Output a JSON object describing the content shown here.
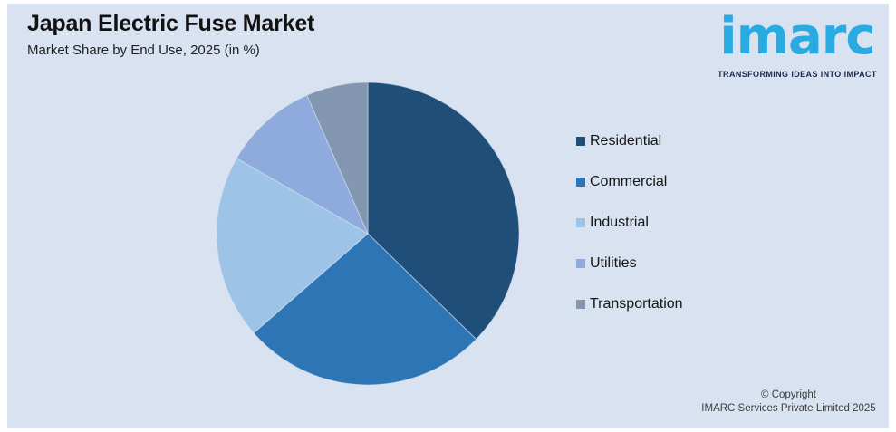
{
  "page": {
    "background": "#ffffff",
    "card_background": "#d9e2f0"
  },
  "header": {
    "title": "Japan Electric Fuse Market",
    "subtitle": "Market Share by End Use, 2025 (in %)"
  },
  "logo": {
    "wordmark": "imarc",
    "tagline": "TRANSFORMING IDEAS INTO IMPACT",
    "brand_color": "#29ABE2",
    "tagline_color": "#1B2A4E"
  },
  "chart_data": {
    "type": "pie",
    "title": "Japan Electric Fuse Market",
    "subtitle": "Market Share by End Use, 2025 (in %)",
    "categories": [
      "Residential",
      "Commercial",
      "Industrial",
      "Utilities",
      "Transportation"
    ],
    "values": [
      37.3,
      26.3,
      19.7,
      10.1,
      6.6
    ],
    "colors": [
      "#1F4E79",
      "#2E75B6",
      "#9DC3E6",
      "#8FAADC",
      "#8497B0"
    ],
    "start_angle_deg": 0,
    "direction": "clockwise",
    "legend_position": "right",
    "data_labels": false,
    "unit": "%"
  },
  "legend": {
    "items": [
      {
        "label": "Residential",
        "color": "#1F4E79"
      },
      {
        "label": "Commercial",
        "color": "#2E75B6"
      },
      {
        "label": "Industrial",
        "color": "#9DC3E6"
      },
      {
        "label": "Utilities",
        "color": "#8FAADC"
      },
      {
        "label": "Transportation",
        "color": "#8497B0"
      }
    ]
  },
  "footer": {
    "line1": "© Copyright",
    "line2": "IMARC Services Private Limited 2025"
  }
}
